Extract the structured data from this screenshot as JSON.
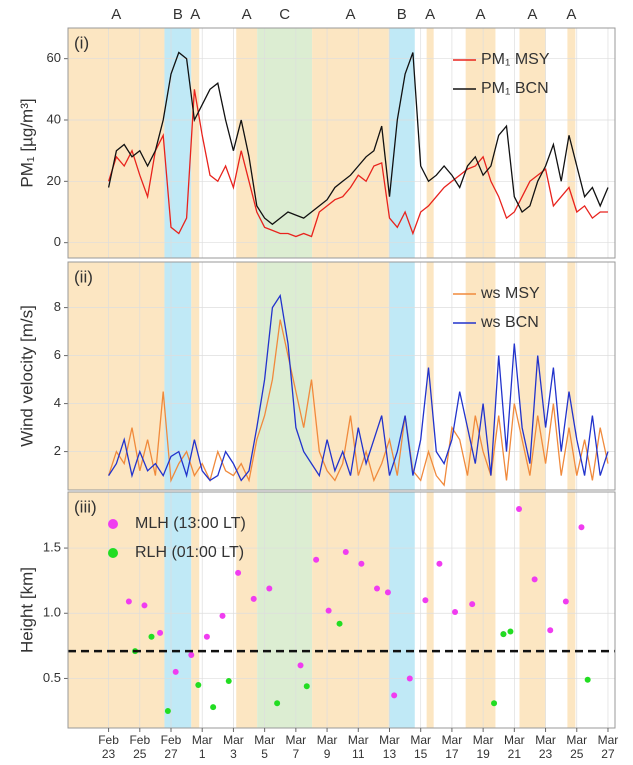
{
  "chart_data": [
    {
      "type": "line",
      "panel_label": "(i)",
      "y_label": "PM₁ [µg/m³]",
      "xlim": [
        20.4,
        55.45
      ],
      "ylim": [
        -5,
        70
      ],
      "yticks": [
        0,
        20,
        40,
        60
      ],
      "grid": true,
      "legend": "top-right",
      "regions": [
        {
          "label": "A",
          "start": 20.38,
          "end": 26.58,
          "color": "#fce6c2"
        },
        {
          "label": "B",
          "start": 26.58,
          "end": 28.3,
          "color": "#c0e9f6"
        },
        {
          "label": "A",
          "start": 28.3,
          "end": 28.81,
          "color": "#fce6c2"
        },
        {
          "label": "A",
          "start": 31.18,
          "end": 32.52,
          "color": "#fce6c2"
        },
        {
          "label": "C",
          "start": 32.52,
          "end": 36.04,
          "color": "#dcedd2"
        },
        {
          "label": "A",
          "start": 36.04,
          "end": 40.96,
          "color": "#fce6c2"
        },
        {
          "label": "B",
          "start": 40.96,
          "end": 42.62,
          "color": "#c0e9f6"
        },
        {
          "label": "A",
          "start": 43.38,
          "end": 43.83,
          "color": "#fce6c2"
        },
        {
          "label": "A",
          "start": 45.88,
          "end": 47.79,
          "color": "#fce6c2"
        },
        {
          "label": "A",
          "start": 49.33,
          "end": 50.99,
          "color": "#fce6c2"
        },
        {
          "label": "A",
          "start": 52.4,
          "end": 52.91,
          "color": "#fce6c2"
        }
      ],
      "x": [
        23,
        23.5,
        24,
        24.5,
        25,
        25.5,
        26,
        26.5,
        27,
        27.5,
        28,
        28.5,
        29,
        29.5,
        30,
        30.5,
        31,
        31.5,
        32,
        32.5,
        33,
        33.5,
        34,
        34.5,
        35,
        35.5,
        36,
        36.5,
        37,
        37.5,
        38,
        38.5,
        39,
        39.5,
        40,
        40.5,
        41,
        41.5,
        42,
        42.5,
        43,
        43.5,
        44,
        44.5,
        45,
        45.5,
        46,
        46.5,
        47,
        47.5,
        48,
        48.5,
        49,
        49.5,
        50,
        50.5,
        51,
        51.5,
        52,
        52.5,
        53,
        53.5,
        54,
        54.5,
        55
      ],
      "series": [
        {
          "name": "PM₁ MSY",
          "color": "#e8231d",
          "values": [
            20,
            28,
            25,
            30,
            22,
            15,
            30,
            35,
            5,
            3,
            8,
            50,
            35,
            22,
            20,
            25,
            18,
            30,
            20,
            10,
            5,
            4,
            3,
            3,
            2,
            3,
            2,
            10,
            12,
            14,
            15,
            18,
            22,
            20,
            25,
            26,
            8,
            5,
            10,
            3,
            10,
            12,
            15,
            18,
            20,
            22,
            24,
            25,
            28,
            20,
            15,
            8,
            10,
            15,
            20,
            22,
            24,
            12,
            15,
            18,
            10,
            12,
            8,
            10,
            10
          ]
        },
        {
          "name": "PM₁ BCN",
          "color": "#111111",
          "values": [
            18,
            30,
            32,
            28,
            30,
            25,
            30,
            40,
            55,
            62,
            60,
            40,
            45,
            50,
            52,
            40,
            30,
            40,
            28,
            12,
            8,
            6,
            8,
            10,
            9,
            8,
            10,
            12,
            14,
            18,
            20,
            22,
            25,
            28,
            30,
            38,
            15,
            40,
            55,
            62,
            25,
            20,
            22,
            25,
            22,
            18,
            25,
            28,
            22,
            25,
            35,
            38,
            15,
            10,
            12,
            20,
            25,
            32,
            20,
            35,
            25,
            15,
            18,
            12,
            18
          ]
        }
      ]
    },
    {
      "type": "line",
      "panel_label": "(ii)",
      "y_label": "Wind velocity [m/s]",
      "xlim": [
        20.4,
        55.45
      ],
      "ylim": [
        0.4,
        9.9
      ],
      "yticks": [
        2,
        4,
        6,
        8
      ],
      "grid": true,
      "legend": "top-right",
      "x": [
        23,
        23.5,
        24,
        24.5,
        25,
        25.5,
        26,
        26.5,
        27,
        27.5,
        28,
        28.5,
        29,
        29.5,
        30,
        30.5,
        31,
        31.5,
        32,
        32.5,
        33,
        33.5,
        34,
        34.5,
        35,
        35.5,
        36,
        36.5,
        37,
        37.5,
        38,
        38.5,
        39,
        39.5,
        40,
        40.5,
        41,
        41.5,
        42,
        42.5,
        43,
        43.5,
        44,
        44.5,
        45,
        45.5,
        46,
        46.5,
        47,
        47.5,
        48,
        48.5,
        49,
        49.5,
        50,
        50.5,
        51,
        51.5,
        52,
        52.5,
        53,
        53.5,
        54,
        54.5,
        55
      ],
      "series": [
        {
          "name": "ws MSY",
          "color": "#f08a3c",
          "values": [
            1.0,
            2.0,
            1.5,
            3.0,
            1.2,
            2.5,
            1.0,
            4.5,
            0.8,
            1.5,
            2.0,
            1.0,
            1.5,
            0.8,
            2.0,
            1.2,
            1.0,
            1.5,
            0.8,
            2.5,
            3.5,
            5.0,
            7.5,
            6.0,
            4.5,
            3.0,
            5.0,
            2.0,
            1.2,
            0.8,
            1.5,
            3.5,
            1.0,
            2.0,
            0.8,
            1.5,
            2.5,
            1.0,
            3.5,
            1.2,
            0.8,
            2.0,
            1.0,
            0.6,
            3.0,
            2.5,
            1.0,
            3.5,
            2.0,
            1.0,
            3.5,
            0.8,
            4.0,
            2.5,
            1.0,
            3.5,
            1.5,
            4.0,
            1.0,
            3.0,
            1.0,
            2.5,
            0.8,
            3.0,
            1.5
          ]
        },
        {
          "name": "ws BCN",
          "color": "#2233cc",
          "values": [
            1.0,
            1.5,
            2.5,
            1.0,
            2.0,
            1.2,
            1.5,
            1.0,
            1.8,
            2.0,
            1.0,
            2.5,
            1.2,
            0.8,
            1.0,
            2.0,
            1.5,
            0.8,
            1.2,
            3.0,
            5.0,
            8.0,
            8.5,
            6.5,
            3.0,
            2.0,
            1.5,
            1.0,
            2.5,
            1.2,
            2.0,
            1.0,
            3.0,
            1.5,
            2.5,
            3.5,
            1.0,
            2.0,
            3.5,
            1.0,
            2.5,
            5.5,
            2.0,
            1.5,
            2.5,
            4.5,
            3.0,
            1.5,
            4.0,
            1.0,
            6.0,
            2.0,
            6.5,
            3.0,
            1.5,
            6.0,
            3.0,
            5.5,
            2.0,
            4.5,
            2.5,
            1.0,
            3.5,
            1.0,
            2.0
          ]
        }
      ]
    },
    {
      "type": "scatter",
      "panel_label": "(iii)",
      "y_label": "Height [km]",
      "xlim": [
        20.4,
        55.45
      ],
      "ylim": [
        0.12,
        1.93
      ],
      "yticks": [
        0.5,
        {
          "value": 1,
          "label": "1.0"
        },
        1.5
      ],
      "grid": true,
      "legend": "top-left",
      "hline": 0.71,
      "xticks": [
        {
          "value": 23,
          "label": "Feb 23"
        },
        {
          "value": 25,
          "label": "Feb 25"
        },
        {
          "value": 27,
          "label": "Feb 27"
        },
        {
          "value": 29,
          "label": "Mar 1"
        },
        {
          "value": 31,
          "label": "Mar 3"
        },
        {
          "value": 33,
          "label": "Mar 5"
        },
        {
          "value": 35,
          "label": "Mar 7"
        },
        {
          "value": 37,
          "label": "Mar 9"
        },
        {
          "value": 39,
          "label": "Mar 11"
        },
        {
          "value": 41,
          "label": "Mar 13"
        },
        {
          "value": 43,
          "label": "Mar 15"
        },
        {
          "value": 45,
          "label": "Mar 17"
        },
        {
          "value": 47,
          "label": "Mar 19"
        },
        {
          "value": 49,
          "label": "Mar 21"
        },
        {
          "value": 51,
          "label": "Mar 23"
        },
        {
          "value": 53,
          "label": "Mar 25"
        },
        {
          "value": 55,
          "label": "Mar 27"
        }
      ],
      "series": [
        {
          "name": "MLH (13:00 LT)",
          "color": "#f03cf0",
          "x": [
            24.3,
            25.3,
            26.3,
            27.3,
            28.3,
            29.3,
            30.3,
            31.3,
            32.3,
            33.3,
            35.3,
            36.3,
            37.1,
            38.2,
            39.2,
            40.2,
            40.9,
            41.3,
            42.3,
            43.3,
            44.2,
            45.2,
            46.3,
            48.3,
            49.3,
            50.3,
            51.3,
            52.3,
            53.3
          ],
          "values": [
            1.09,
            1.06,
            0.85,
            0.55,
            0.68,
            0.82,
            0.98,
            1.31,
            1.11,
            1.19,
            0.6,
            1.41,
            1.02,
            1.47,
            1.38,
            1.19,
            1.16,
            0.37,
            0.5,
            1.1,
            1.38,
            1.01,
            1.07,
            0.84,
            1.8,
            1.26,
            0.87,
            1.09,
            1.66
          ]
        },
        {
          "name": "RLH (01:00 LT)",
          "color": "#22dd22",
          "x": [
            24.7,
            25.75,
            26.8,
            28.75,
            29.7,
            30.7,
            33.8,
            35.7,
            37.8,
            47.7,
            48.3,
            48.75,
            53.7
          ],
          "values": [
            0.71,
            0.82,
            0.25,
            0.45,
            0.28,
            0.48,
            0.31,
            0.44,
            0.92,
            0.31,
            0.84,
            0.86,
            0.49
          ]
        }
      ]
    }
  ]
}
